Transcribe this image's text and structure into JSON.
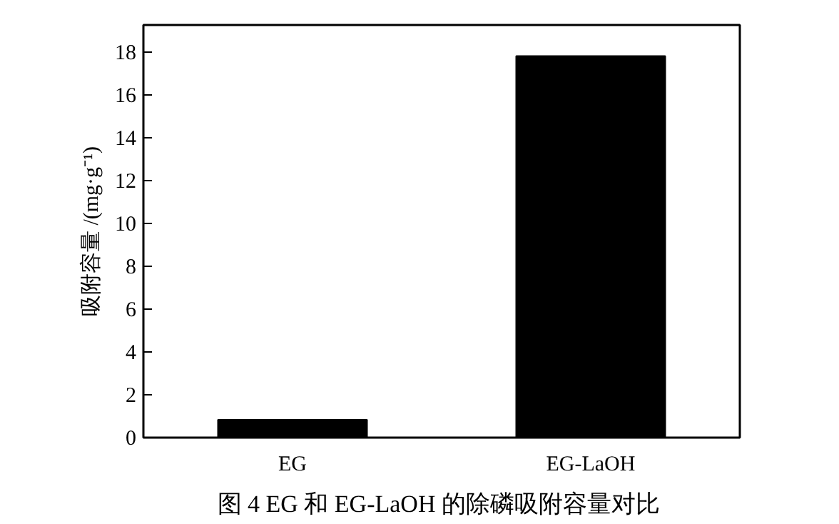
{
  "chart_data": {
    "type": "bar",
    "title": "图 4  EG 和 EG-LaOH 的除磷吸附容量对比",
    "ylabel": "吸附容量 /(mg·g⁻¹)",
    "categories": [
      "EG",
      "EG-LaOH"
    ],
    "values": [
      0.83,
      17.8
    ],
    "color": "#000000",
    "ylim": [
      0,
      19.25
    ],
    "yticks": [
      0,
      2,
      4,
      6,
      8,
      10,
      12,
      14,
      16,
      18
    ],
    "grid": false
  }
}
